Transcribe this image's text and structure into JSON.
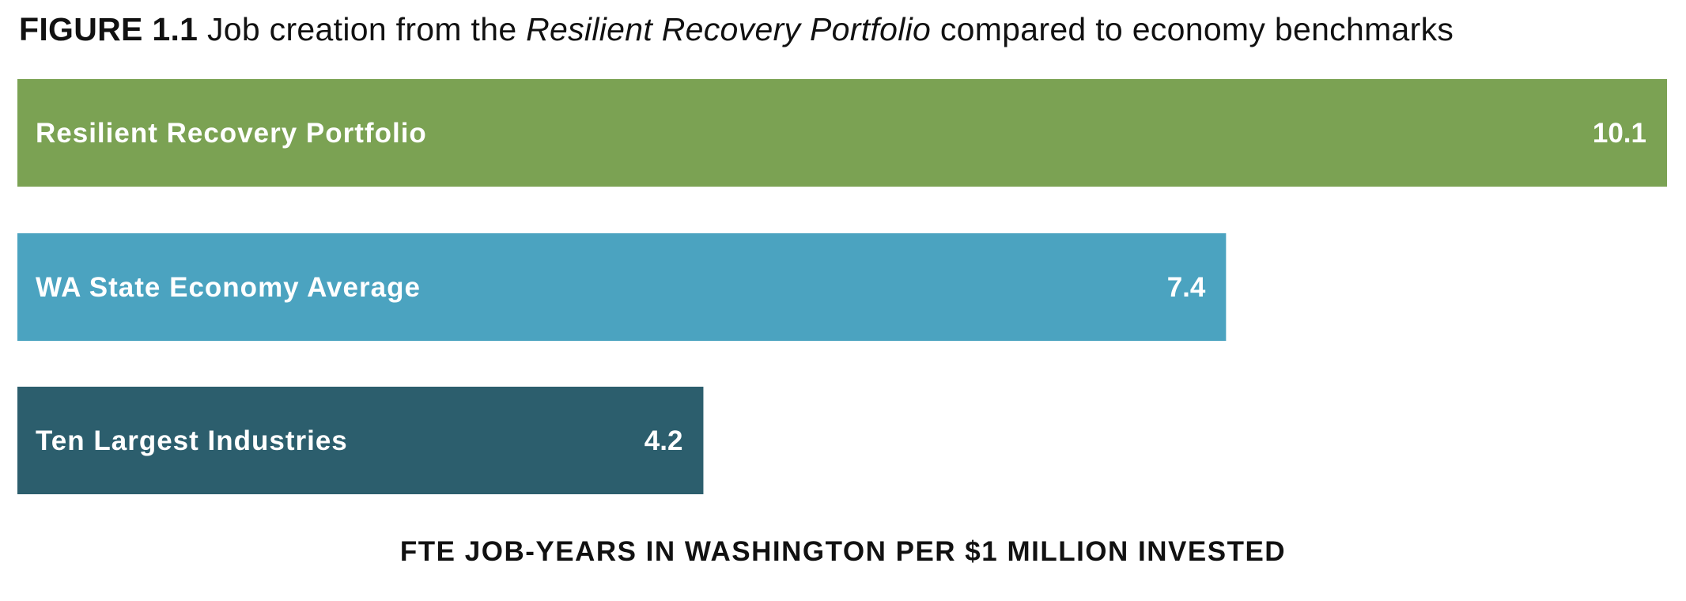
{
  "figure": {
    "number": "FIGURE 1.1",
    "title_pre": "Job creation from the ",
    "title_italic": "Resilient Recovery Portfolio",
    "title_post": " compared to economy benchmarks"
  },
  "chart_data": {
    "type": "bar",
    "orientation": "horizontal",
    "title": "Job creation from the Resilient Recovery Portfolio compared to economy benchmarks",
    "categories": [
      "Resilient Recovery Portfolio",
      "WA State Economy Average",
      "Ten Largest Industries"
    ],
    "values": [
      10.1,
      7.4,
      4.2
    ],
    "value_labels": [
      "10.1",
      "7.4",
      "4.2"
    ],
    "colors": [
      "#7BA253",
      "#4BA3C0",
      "#2C5E6D"
    ],
    "xlabel": "FTE JOB-YEARS IN WASHINGTON PER $1 MILLION INVESTED",
    "ylabel": "",
    "xlim": [
      0,
      10.1
    ],
    "grid": false,
    "legend": "none"
  }
}
